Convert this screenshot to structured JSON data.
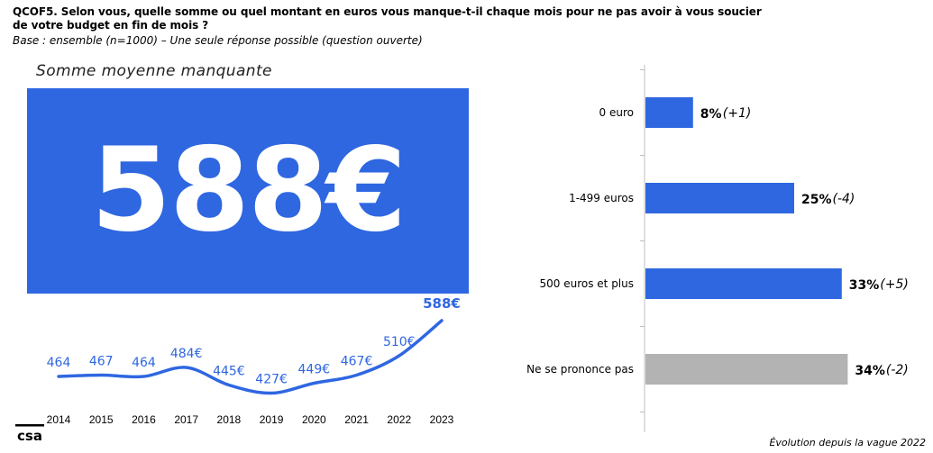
{
  "header": {
    "question": "QCOF5. Selon vous, quelle somme ou quel montant en euros vous manque-t-il chaque mois pour ne pas avoir à vous soucier de votre budget en fin de mois ?",
    "base": "Base : ensemble (n=1000) – Une seule réponse possible (question ouverte)"
  },
  "average": {
    "title": "Somme moyenne manquante",
    "value": "588€",
    "box_color": "#2f67e1"
  },
  "footnote": "Évolution depuis la vague 2022",
  "logo": {
    "icon": "csa-logo-icon",
    "text": "csa"
  },
  "chart_data": [
    {
      "type": "line",
      "x": [
        "2014",
        "2015",
        "2016",
        "2017",
        "2018",
        "2019",
        "2020",
        "2021",
        "2022",
        "2023"
      ],
      "series": [
        {
          "values": [
            464,
            467,
            464,
            484,
            445,
            427,
            449,
            467,
            510,
            588
          ],
          "labels": [
            "464",
            "467",
            "464",
            "484€",
            "445€",
            "427€",
            "449€",
            "467€",
            "510€",
            "588€"
          ],
          "color": "#2f67e1"
        }
      ],
      "ylim": [
        380,
        620
      ],
      "grid": false,
      "legend": "none"
    },
    {
      "type": "bar",
      "orientation": "horizontal",
      "categories": [
        "0 euro",
        "1-499 euros",
        "500 euros et plus",
        "Ne se prononce pas"
      ],
      "values": [
        8,
        25,
        33,
        34
      ],
      "value_labels": [
        "8%",
        "25%",
        "33%",
        "34%"
      ],
      "deltas": [
        "(+1)",
        "(-4)",
        "(+5)",
        "(-2)"
      ],
      "colors": [
        "#2f67e1",
        "#2f67e1",
        "#2f67e1",
        "#b3b3b3"
      ],
      "xlim": [
        0,
        50
      ],
      "grid": false,
      "legend": "none"
    }
  ]
}
